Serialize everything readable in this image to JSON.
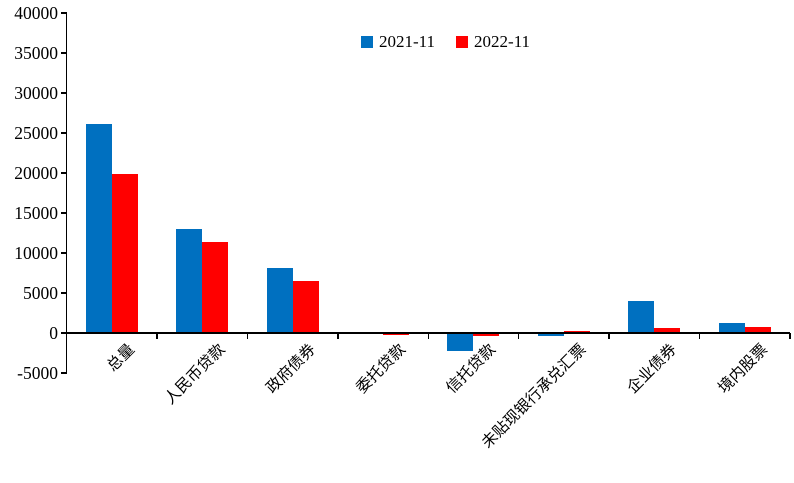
{
  "chart_data": {
    "type": "bar",
    "title": "",
    "categories": [
      "总量",
      "人民币贷款",
      "政府债券",
      "委托贷款",
      "信托贷款",
      "未贴现银行承兑汇票",
      "企业债券",
      "境内股票"
    ],
    "series": [
      {
        "name": "2021-11",
        "color": "#0070C0",
        "values": [
          26100,
          13000,
          8158,
          35,
          -2190,
          -383,
          4006,
          1294
        ]
      },
      {
        "name": "2022-11",
        "color": "#FF0000",
        "values": [
          19900,
          11400,
          6520,
          -88,
          -365,
          190,
          596,
          788
        ]
      }
    ],
    "y_ticks": [
      40000,
      35000,
      30000,
      25000,
      20000,
      15000,
      10000,
      5000,
      0,
      -5000
    ],
    "ylim": [
      -5000,
      40000
    ],
    "xlabel": "",
    "ylabel": "",
    "grid": false,
    "legend_position": "top-center",
    "axis_color": "#000000",
    "background_color": "#FFFFFF"
  }
}
